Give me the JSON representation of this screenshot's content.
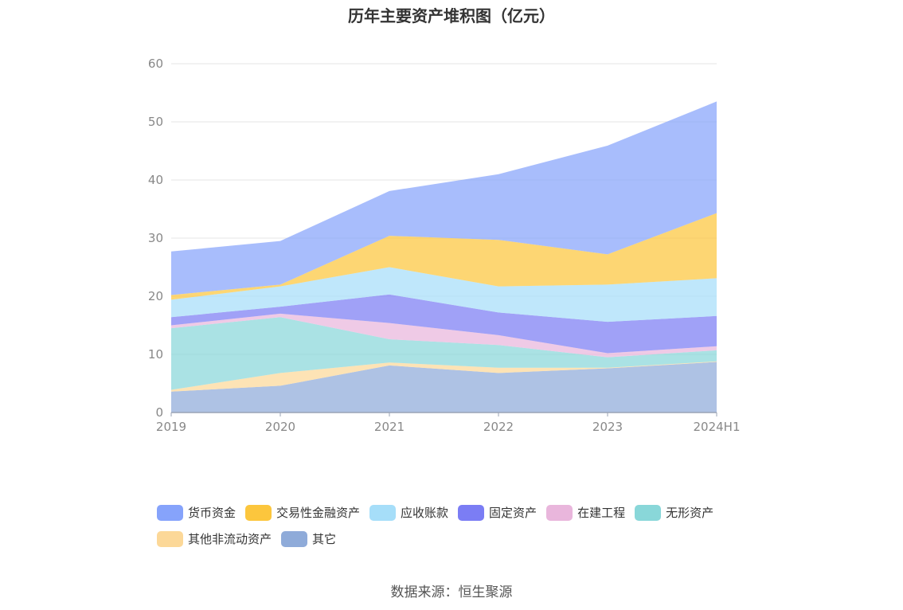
{
  "chart_data": {
    "type": "area",
    "stacked": true,
    "title": "历年主要资产堆积图（亿元）",
    "x": [
      "2019",
      "2020",
      "2021",
      "2022",
      "2023",
      "2024H1"
    ],
    "yticks": [
      "0",
      "10",
      "20",
      "30",
      "40",
      "50",
      "60"
    ],
    "ylim": [
      0,
      60
    ],
    "grid": true,
    "legend_position": "bottom",
    "series": [
      {
        "name": "其它",
        "color": "#8fabd9",
        "values": [
          3.6,
          4.6,
          8.1,
          6.8,
          7.6,
          8.7
        ]
      },
      {
        "name": "其他非流动资产",
        "color": "#fcd898",
        "values": [
          0.3,
          2.2,
          0.5,
          0.9,
          0.1,
          0.1
        ]
      },
      {
        "name": "无形资产",
        "color": "#89d7d9",
        "values": [
          10.6,
          9.6,
          4.0,
          3.9,
          1.8,
          1.9
        ]
      },
      {
        "name": "在建工程",
        "color": "#e9b6dc",
        "values": [
          0.5,
          0.6,
          2.8,
          1.7,
          0.7,
          0.7
        ]
      },
      {
        "name": "固定资产",
        "color": "#7b7df4",
        "values": [
          1.4,
          1.2,
          4.9,
          3.9,
          5.4,
          5.2
        ]
      },
      {
        "name": "应收账款",
        "color": "#a6def9",
        "values": [
          3.0,
          3.5,
          4.7,
          4.5,
          6.4,
          6.5
        ]
      },
      {
        "name": "交易性金融资产",
        "color": "#fcc63d",
        "values": [
          0.8,
          0.3,
          5.4,
          8.0,
          5.2,
          11.2
        ]
      },
      {
        "name": "货币资金",
        "color": "#86a3fb",
        "values": [
          7.5,
          7.5,
          7.7,
          11.3,
          18.7,
          19.2
        ]
      }
    ],
    "legend_order": [
      "货币资金",
      "交易性金融资产",
      "应收账款",
      "固定资产",
      "在建工程",
      "无形资产",
      "其他非流动资产",
      "其它"
    ]
  },
  "source_text": "数据来源：恒生聚源"
}
